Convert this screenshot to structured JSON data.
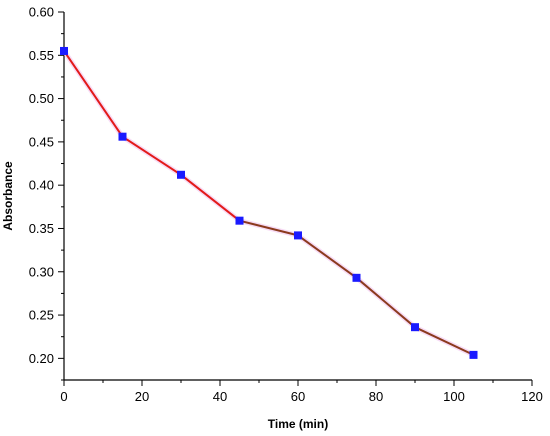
{
  "chart_data": {
    "type": "line",
    "title": "",
    "xlabel": "Time (min)",
    "ylabel": "Absorbance",
    "xlim": [
      0,
      120
    ],
    "ylim": [
      0.175,
      0.6
    ],
    "xticks": [
      0,
      20,
      40,
      60,
      80,
      100,
      120
    ],
    "yticks": [
      0.2,
      0.25,
      0.3,
      0.35,
      0.4,
      0.45,
      0.5,
      0.55,
      0.6
    ],
    "grid": false,
    "legend": "none",
    "series": [
      {
        "x": [
          0,
          15,
          30,
          45,
          60,
          75,
          90,
          105
        ],
        "y": [
          0.555,
          0.456,
          0.412,
          0.359,
          0.342,
          0.293,
          0.236,
          0.204
        ],
        "line_colors": [
          "#e31a1a",
          "#e31a1a",
          "#e31a1a",
          "#8b3a1e",
          "#8b3a1e",
          "#8b3a1e",
          "#8b3a1e"
        ],
        "marker": "square",
        "marker_color": "#1a1aff"
      }
    ]
  }
}
